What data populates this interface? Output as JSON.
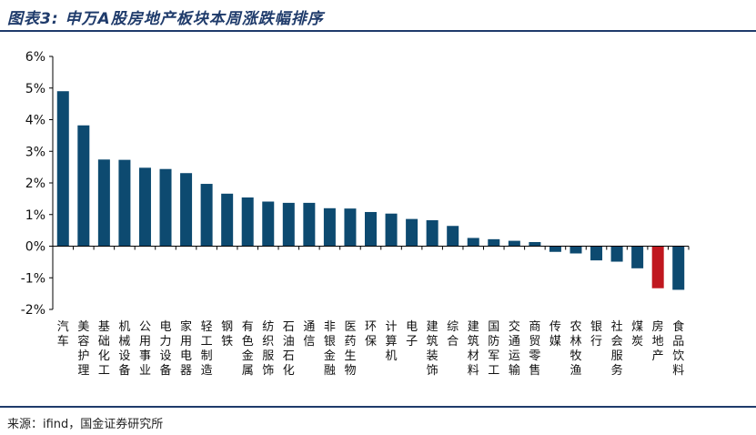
{
  "title": "图表3: 申万A股房地产板块本周涨跌幅排序",
  "source": "来源：ifind，国金证券研究所",
  "colors": {
    "bar": "#0d4a70",
    "highlight": "#c0171f",
    "title": "#1f3b6b"
  },
  "chart_data": {
    "type": "bar",
    "categories": [
      "汽车",
      "美容护理",
      "基础化工",
      "机械设备",
      "公用事业",
      "电力设备",
      "家用电器",
      "轻工制造",
      "钢铁",
      "有色金属",
      "纺织服饰",
      "石油石化",
      "通信",
      "非银金融",
      "医药生物",
      "环保",
      "计算机",
      "电子",
      "建筑装饰",
      "综合",
      "建筑材料",
      "国防军工",
      "交通运输",
      "商贸零售",
      "传媒",
      "农林牧渔",
      "银行",
      "社会服务",
      "煤炭",
      "房地产",
      "食品饮料"
    ],
    "values": [
      4.9,
      3.82,
      2.74,
      2.73,
      2.48,
      2.44,
      2.31,
      1.97,
      1.66,
      1.54,
      1.41,
      1.37,
      1.37,
      1.2,
      1.19,
      1.08,
      1.03,
      0.86,
      0.82,
      0.64,
      0.26,
      0.22,
      0.17,
      0.13,
      -0.18,
      -0.23,
      -0.45,
      -0.49,
      -0.7,
      -1.33,
      -1.38
    ],
    "highlight": "房地产",
    "yticks": [
      "6%",
      "5%",
      "4%",
      "3%",
      "2%",
      "1%",
      "0%",
      "-1%",
      "-2%"
    ],
    "ylim": [
      -2,
      6
    ],
    "grid": false
  }
}
